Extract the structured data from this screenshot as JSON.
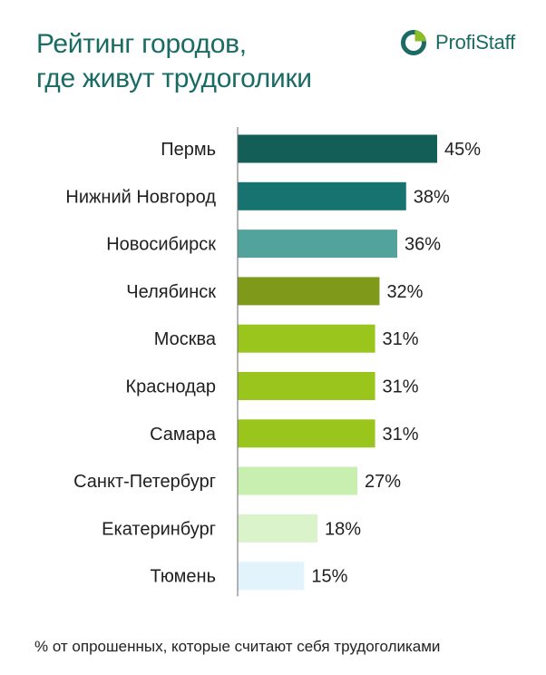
{
  "header": {
    "title_line1": "Рейтинг городов,",
    "title_line2": "где живут трудоголики"
  },
  "logo": {
    "text": "ProfiStaff",
    "icon": "pie-chart-logo-icon",
    "colors": {
      "ring": "#1a6b63",
      "slice": "#8bbe24"
    }
  },
  "chart_data": {
    "type": "bar",
    "orientation": "horizontal",
    "categories": [
      "Пермь",
      "Нижний Новгород",
      "Новосибирск",
      "Челябинск",
      "Москва",
      "Краснодар",
      "Самара",
      "Санкт-Петербург",
      "Екатеринбург",
      "Тюмень"
    ],
    "values": [
      45,
      38,
      36,
      32,
      31,
      31,
      31,
      27,
      18,
      15
    ],
    "labels": [
      "45%",
      "38%",
      "36%",
      "32%",
      "31%",
      "31%",
      "31%",
      "27%",
      "18%",
      "15%"
    ],
    "colors": [
      "#135f58",
      "#177370",
      "#52a39c",
      "#7f9a1a",
      "#9ac51d",
      "#9ac51d",
      "#9ac51d",
      "#c8efb0",
      "#daf3cb",
      "#e2f3fb"
    ],
    "xlim": [
      0,
      45
    ],
    "grid": false,
    "legend": "none"
  },
  "footnote": "% от опрошенных, которые считают себя трудоголиками"
}
